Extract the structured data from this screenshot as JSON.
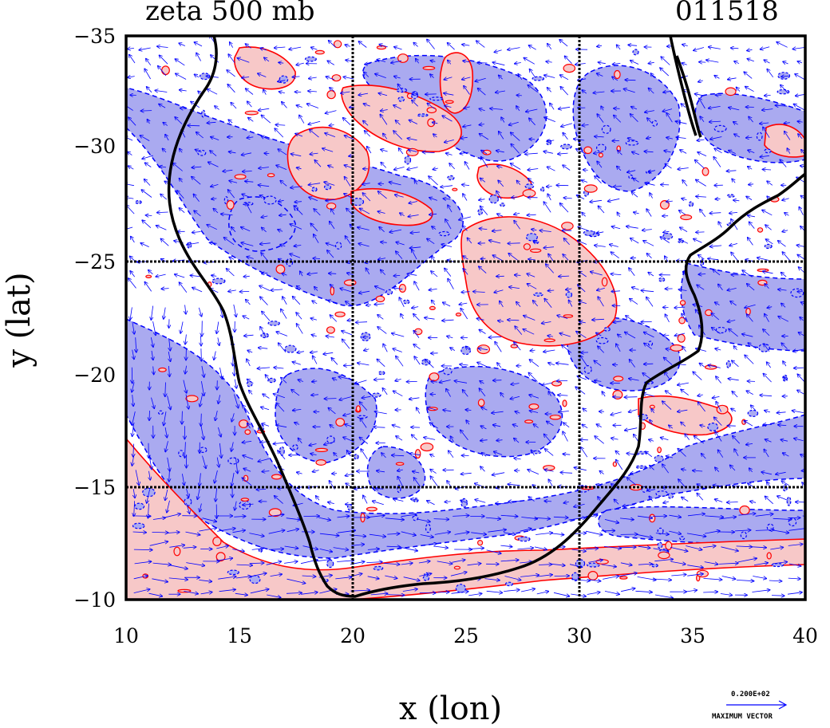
{
  "header": {
    "title": "zeta 500 mb",
    "date_code": "011518"
  },
  "axes": {
    "xlabel": "x (lon)",
    "ylabel": "y (lat)",
    "x_ticks": [
      "10",
      "15",
      "20",
      "25",
      "30",
      "35",
      "40"
    ],
    "y_ticks": [
      "−35",
      "−30",
      "−25",
      "−20",
      "−15",
      "−10"
    ],
    "xlim": [
      10,
      40
    ],
    "ylim": [
      -10,
      -35
    ],
    "grid_lines_lon": [
      20,
      30
    ],
    "grid_lines_lat": [
      -25,
      -15
    ]
  },
  "legend": {
    "magnitude_label": "0.200E+02",
    "vector_label": "MAXIMUM VECTOR"
  },
  "colors": {
    "positive_fill": "#f7c8c8",
    "positive_contour": "#ff0000",
    "negative_fill": "#aaaaf0",
    "negative_contour": "#0000ff",
    "vectors": "#0000ff",
    "coastline": "#000000",
    "frame": "#000000"
  }
}
